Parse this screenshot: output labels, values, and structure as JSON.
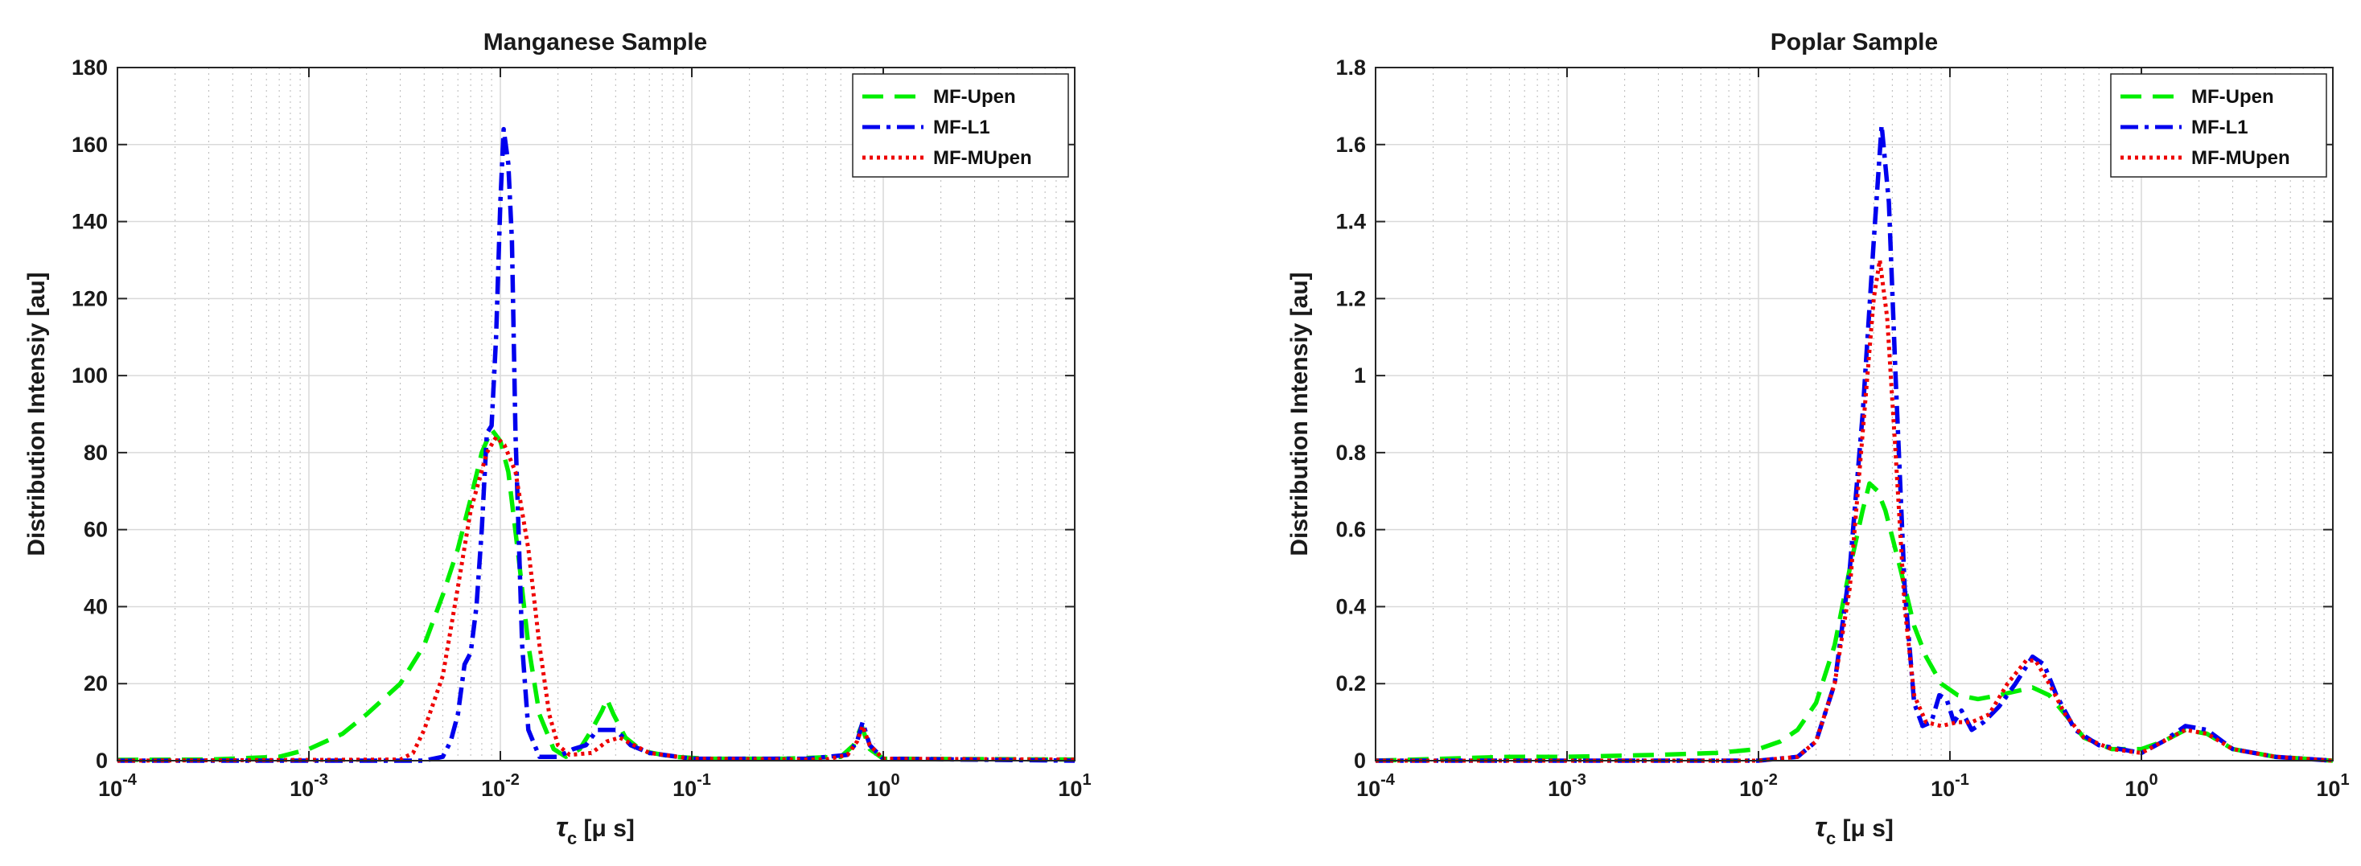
{
  "chart_data": [
    {
      "type": "line",
      "title": "Manganese Sample",
      "xlabel": "τc [μ s]",
      "xlabel_main": "τ",
      "xlabel_sub": "c",
      "xlabel_rest": " [μ s]",
      "ylabel": "Distribution Intensiy [au]",
      "xscale": "log",
      "xlim": [
        0.0001,
        10
      ],
      "ylim": [
        0,
        180
      ],
      "xticks": [
        0.0001,
        0.001,
        0.01,
        0.1,
        1,
        10
      ],
      "xtick_bases": [
        "10",
        "10",
        "10",
        "10",
        "10",
        "10"
      ],
      "xtick_exponents": [
        "-4",
        "-3",
        "-2",
        "-1",
        "0",
        "1"
      ],
      "yticks": [
        "0",
        "20",
        "40",
        "60",
        "80",
        "100",
        "120",
        "140",
        "160",
        "180"
      ],
      "grid": true,
      "legend_position": "top-right",
      "series": [
        {
          "name": "MF-Upen",
          "color": "#00ee00",
          "dash": "dashed",
          "points": [
            [
              0.0001,
              0.2
            ],
            [
              0.0003,
              0.3
            ],
            [
              0.0007,
              1
            ],
            [
              0.001,
              3
            ],
            [
              0.0015,
              7
            ],
            [
              0.002,
              12
            ],
            [
              0.003,
              20
            ],
            [
              0.004,
              30
            ],
            [
              0.005,
              43
            ],
            [
              0.006,
              55
            ],
            [
              0.007,
              68
            ],
            [
              0.008,
              80
            ],
            [
              0.009,
              86
            ],
            [
              0.01,
              83
            ],
            [
              0.011,
              75
            ],
            [
              0.0125,
              52
            ],
            [
              0.014,
              30
            ],
            [
              0.016,
              12
            ],
            [
              0.019,
              3
            ],
            [
              0.022,
              1
            ],
            [
              0.026,
              3
            ],
            [
              0.03,
              8
            ],
            [
              0.034,
              13
            ],
            [
              0.036,
              16
            ],
            [
              0.039,
              12
            ],
            [
              0.045,
              6
            ],
            [
              0.055,
              2.5
            ],
            [
              0.08,
              1
            ],
            [
              0.12,
              0.5
            ],
            [
              0.3,
              0.5
            ],
            [
              0.6,
              1
            ],
            [
              0.7,
              4
            ],
            [
              0.77,
              9
            ],
            [
              0.85,
              3
            ],
            [
              1,
              0.5
            ],
            [
              10,
              0.3
            ]
          ]
        },
        {
          "name": "MF-L1",
          "color": "#0000ee",
          "dash": "dashdot",
          "points": [
            [
              0.0001,
              0
            ],
            [
              0.004,
              0
            ],
            [
              0.005,
              1
            ],
            [
              0.0055,
              5
            ],
            [
              0.006,
              12
            ],
            [
              0.0065,
              25
            ],
            [
              0.007,
              28
            ],
            [
              0.0075,
              40
            ],
            [
              0.008,
              60
            ],
            [
              0.0085,
              85
            ],
            [
              0.009,
              87
            ],
            [
              0.0095,
              110
            ],
            [
              0.01,
              145
            ],
            [
              0.0104,
              164
            ],
            [
              0.011,
              155
            ],
            [
              0.0115,
              135
            ],
            [
              0.012,
              85
            ],
            [
              0.013,
              30
            ],
            [
              0.014,
              8
            ],
            [
              0.016,
              1
            ],
            [
              0.02,
              1
            ],
            [
              0.024,
              3
            ],
            [
              0.028,
              4
            ],
            [
              0.032,
              8
            ],
            [
              0.04,
              8
            ],
            [
              0.048,
              4
            ],
            [
              0.06,
              2
            ],
            [
              0.1,
              0.5
            ],
            [
              0.4,
              0.5
            ],
            [
              0.65,
              1.5
            ],
            [
              0.73,
              5
            ],
            [
              0.78,
              10
            ],
            [
              0.85,
              4
            ],
            [
              1,
              0.5
            ],
            [
              10,
              0
            ]
          ]
        },
        {
          "name": "MF-MUpen",
          "color": "#ee0000",
          "dash": "dotted",
          "points": [
            [
              0.0001,
              0
            ],
            [
              0.003,
              0.3
            ],
            [
              0.0035,
              2
            ],
            [
              0.004,
              8
            ],
            [
              0.005,
              22
            ],
            [
              0.006,
              45
            ],
            [
              0.007,
              65
            ],
            [
              0.0085,
              80
            ],
            [
              0.0095,
              84
            ],
            [
              0.0105,
              82
            ],
            [
              0.012,
              75
            ],
            [
              0.014,
              55
            ],
            [
              0.016,
              30
            ],
            [
              0.018,
              12
            ],
            [
              0.02,
              4
            ],
            [
              0.023,
              1.5
            ],
            [
              0.03,
              2
            ],
            [
              0.036,
              5
            ],
            [
              0.042,
              6
            ],
            [
              0.05,
              4
            ],
            [
              0.06,
              2
            ],
            [
              0.1,
              0.5
            ],
            [
              0.5,
              0.3
            ],
            [
              0.65,
              1.5
            ],
            [
              0.73,
              5
            ],
            [
              0.78,
              9
            ],
            [
              0.85,
              4
            ],
            [
              1,
              0.5
            ],
            [
              10,
              0.3
            ]
          ]
        }
      ]
    },
    {
      "type": "line",
      "title": "Poplar Sample",
      "xlabel": "τc [μ s]",
      "xlabel_main": "τ",
      "xlabel_sub": "c",
      "xlabel_rest": " [μ s]",
      "ylabel": "Distribution Intensiy [au]",
      "xscale": "log",
      "xlim": [
        0.0001,
        10
      ],
      "ylim": [
        0,
        1.8
      ],
      "xticks": [
        0.0001,
        0.001,
        0.01,
        0.1,
        1,
        10
      ],
      "xtick_bases": [
        "10",
        "10",
        "10",
        "10",
        "10",
        "10"
      ],
      "xtick_exponents": [
        "-4",
        "-3",
        "-2",
        "-1",
        "0",
        "1"
      ],
      "yticks": [
        "0",
        "0.2",
        "0.4",
        "0.6",
        "0.8",
        "1",
        "1.2",
        "1.4",
        "1.6",
        "1.8"
      ],
      "grid": true,
      "legend_position": "top-right",
      "series": [
        {
          "name": "MF-Upen",
          "color": "#00ee00",
          "dash": "dashed",
          "points": [
            [
              0.0001,
              0
            ],
            [
              0.0005,
              0.01
            ],
            [
              0.001,
              0.01
            ],
            [
              0.003,
              0.015
            ],
            [
              0.006,
              0.02
            ],
            [
              0.01,
              0.03
            ],
            [
              0.013,
              0.05
            ],
            [
              0.016,
              0.08
            ],
            [
              0.02,
              0.15
            ],
            [
              0.025,
              0.3
            ],
            [
              0.03,
              0.5
            ],
            [
              0.035,
              0.65
            ],
            [
              0.038,
              0.72
            ],
            [
              0.042,
              0.7
            ],
            [
              0.046,
              0.65
            ],
            [
              0.05,
              0.58
            ],
            [
              0.055,
              0.5
            ],
            [
              0.065,
              0.35
            ],
            [
              0.075,
              0.27
            ],
            [
              0.09,
              0.2
            ],
            [
              0.11,
              0.17
            ],
            [
              0.14,
              0.16
            ],
            [
              0.18,
              0.17
            ],
            [
              0.22,
              0.18
            ],
            [
              0.27,
              0.19
            ],
            [
              0.33,
              0.17
            ],
            [
              0.4,
              0.12
            ],
            [
              0.5,
              0.06
            ],
            [
              0.7,
              0.03
            ],
            [
              1,
              0.03
            ],
            [
              1.3,
              0.05
            ],
            [
              1.7,
              0.08
            ],
            [
              2.2,
              0.07
            ],
            [
              3,
              0.03
            ],
            [
              5,
              0.01
            ],
            [
              10,
              0
            ]
          ]
        },
        {
          "name": "MF-L1",
          "color": "#0000ee",
          "dash": "dashdot",
          "points": [
            [
              0.0001,
              0
            ],
            [
              0.01,
              0
            ],
            [
              0.016,
              0.01
            ],
            [
              0.02,
              0.05
            ],
            [
              0.025,
              0.2
            ],
            [
              0.03,
              0.5
            ],
            [
              0.035,
              0.9
            ],
            [
              0.04,
              1.35
            ],
            [
              0.044,
              1.65
            ],
            [
              0.048,
              1.45
            ],
            [
              0.052,
              1.0
            ],
            [
              0.058,
              0.45
            ],
            [
              0.065,
              0.15
            ],
            [
              0.072,
              0.09
            ],
            [
              0.08,
              0.1
            ],
            [
              0.088,
              0.17
            ],
            [
              0.096,
              0.16
            ],
            [
              0.105,
              0.1
            ],
            [
              0.115,
              0.13
            ],
            [
              0.13,
              0.08
            ],
            [
              0.15,
              0.1
            ],
            [
              0.18,
              0.14
            ],
            [
              0.22,
              0.2
            ],
            [
              0.27,
              0.27
            ],
            [
              0.31,
              0.25
            ],
            [
              0.36,
              0.17
            ],
            [
              0.45,
              0.08
            ],
            [
              0.6,
              0.04
            ],
            [
              1,
              0.02
            ],
            [
              1.3,
              0.05
            ],
            [
              1.7,
              0.09
            ],
            [
              2.2,
              0.08
            ],
            [
              3,
              0.03
            ],
            [
              5,
              0.01
            ],
            [
              10,
              0
            ]
          ]
        },
        {
          "name": "MF-MUpen",
          "color": "#ee0000",
          "dash": "dotted",
          "points": [
            [
              0.0001,
              0
            ],
            [
              0.01,
              0
            ],
            [
              0.016,
              0.01
            ],
            [
              0.02,
              0.05
            ],
            [
              0.025,
              0.2
            ],
            [
              0.03,
              0.45
            ],
            [
              0.035,
              0.85
            ],
            [
              0.04,
              1.2
            ],
            [
              0.043,
              1.3
            ],
            [
              0.047,
              1.15
            ],
            [
              0.052,
              0.8
            ],
            [
              0.058,
              0.4
            ],
            [
              0.065,
              0.17
            ],
            [
              0.075,
              0.1
            ],
            [
              0.09,
              0.09
            ],
            [
              0.11,
              0.1
            ],
            [
              0.13,
              0.1
            ],
            [
              0.16,
              0.12
            ],
            [
              0.2,
              0.2
            ],
            [
              0.25,
              0.26
            ],
            [
              0.28,
              0.26
            ],
            [
              0.33,
              0.2
            ],
            [
              0.4,
              0.12
            ],
            [
              0.5,
              0.06
            ],
            [
              0.7,
              0.03
            ],
            [
              1,
              0.02
            ],
            [
              1.3,
              0.05
            ],
            [
              1.7,
              0.08
            ],
            [
              2.2,
              0.07
            ],
            [
              3,
              0.03
            ],
            [
              5,
              0.01
            ],
            [
              10,
              0
            ]
          ]
        }
      ]
    }
  ]
}
